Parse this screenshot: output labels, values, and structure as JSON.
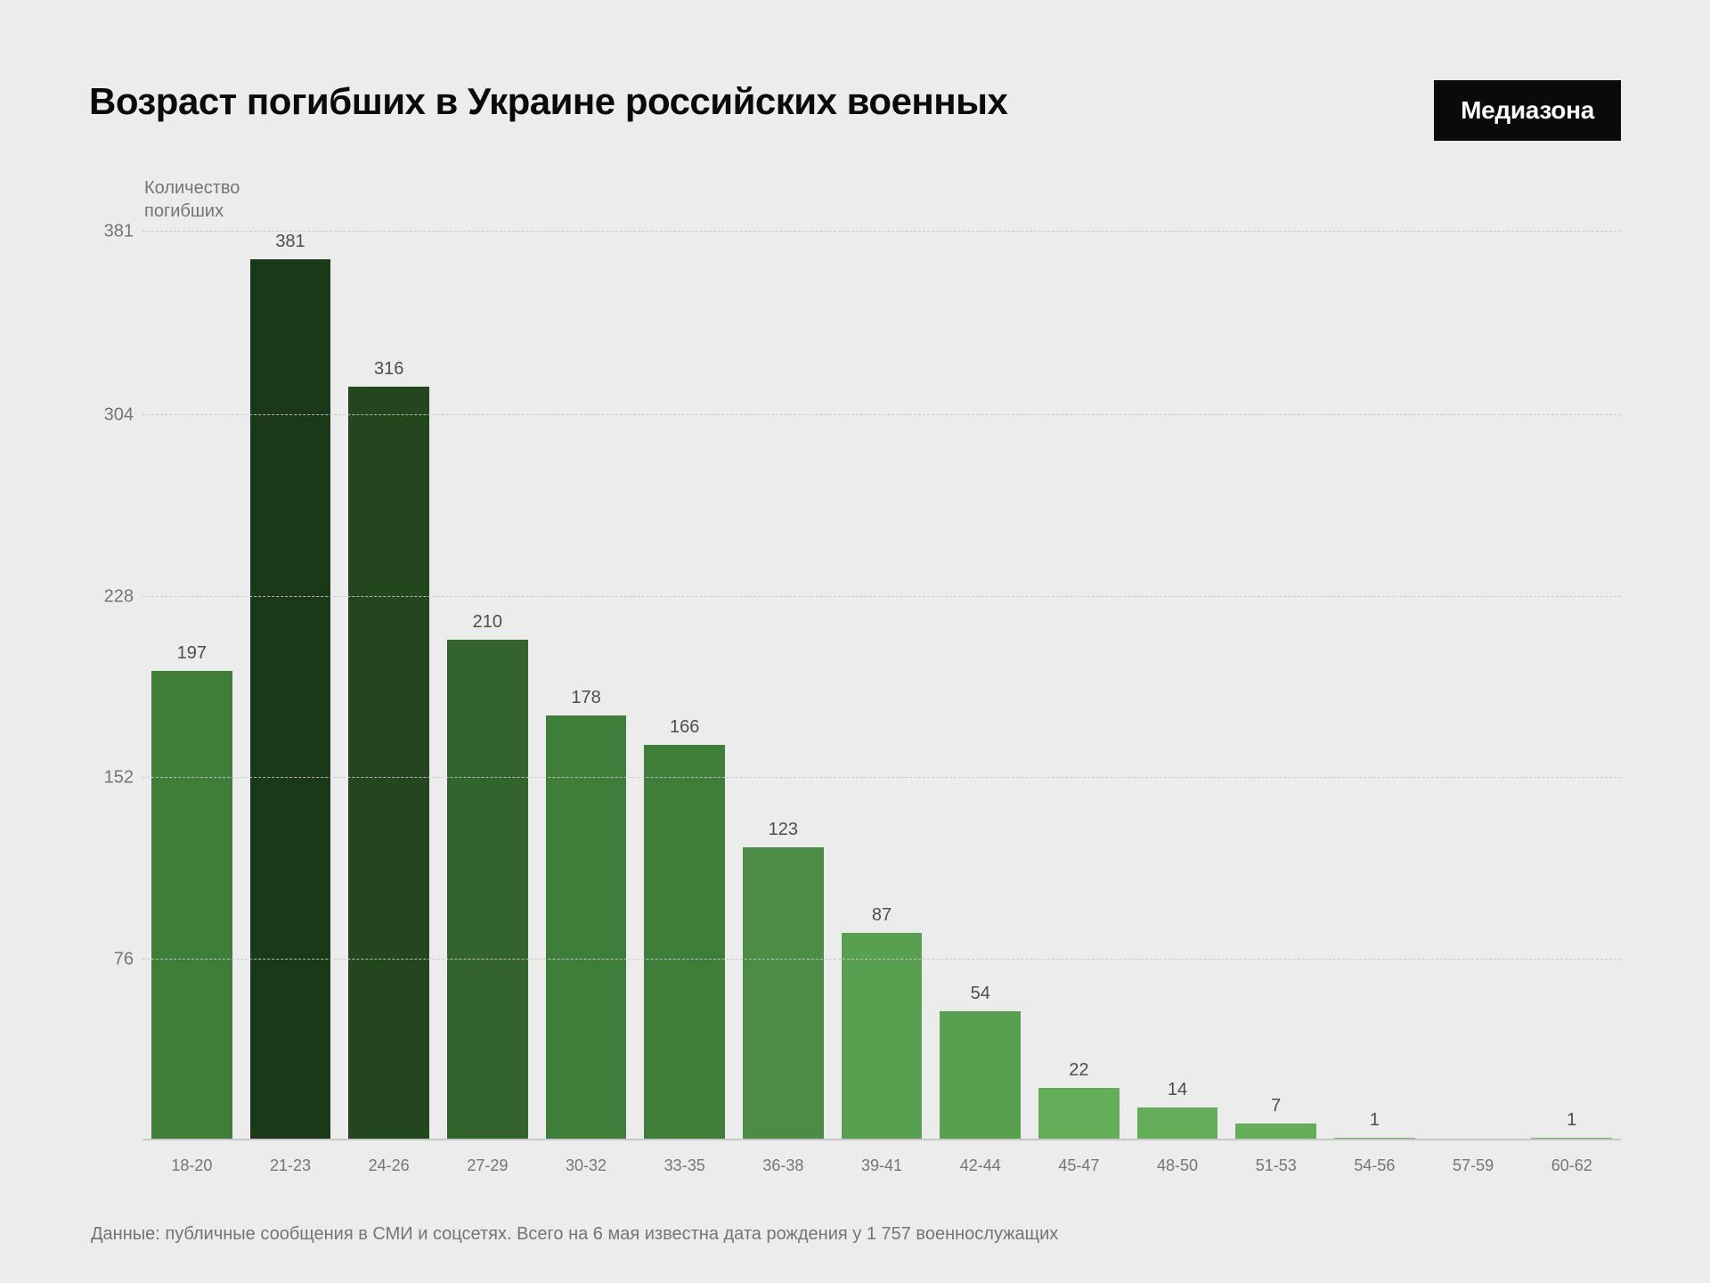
{
  "background_color": "#ececec",
  "title": "Возраст погибших в Украине российских военных",
  "title_color": "#0a0a0a",
  "logo_text": "Медиазона",
  "logo_bg": "#0a0a0a",
  "logo_fg": "#ffffff",
  "ylabel": "Количество\nпогибших",
  "footnote": "Данные: публичные сообщения в СМИ и соцсетях. Всего на 6 мая известна дата рождения у 1 757 военнослужащих",
  "chart": {
    "type": "bar",
    "ymax": 381,
    "yticks": [
      76,
      152,
      228,
      304,
      381
    ],
    "grid_color": "#c7c7c7",
    "baseline_color": "#c7c7c7",
    "value_label_color": "#4d4d4d",
    "tick_color": "#757575",
    "bar_width_pct": 82,
    "categories": [
      "18-20",
      "21-23",
      "24-26",
      "27-29",
      "30-32",
      "33-35",
      "36-38",
      "39-41",
      "42-44",
      "45-47",
      "48-50",
      "51-53",
      "54-56",
      "57-59",
      "60-62"
    ],
    "values": [
      197,
      381,
      316,
      210,
      178,
      166,
      123,
      87,
      54,
      22,
      14,
      7,
      1,
      0,
      1
    ],
    "show_value_label": [
      true,
      true,
      true,
      true,
      true,
      true,
      true,
      true,
      true,
      true,
      true,
      true,
      true,
      false,
      true
    ],
    "bar_colors": [
      "#3f7d3a",
      "#1b3818",
      "#24461f",
      "#33642e",
      "#3f7d3a",
      "#3f7d3a",
      "#4c8c46",
      "#58a04f",
      "#58a04f",
      "#64ad59",
      "#64ad59",
      "#64ad59",
      "#6fb862",
      "#6fb862",
      "#6fb862"
    ]
  }
}
